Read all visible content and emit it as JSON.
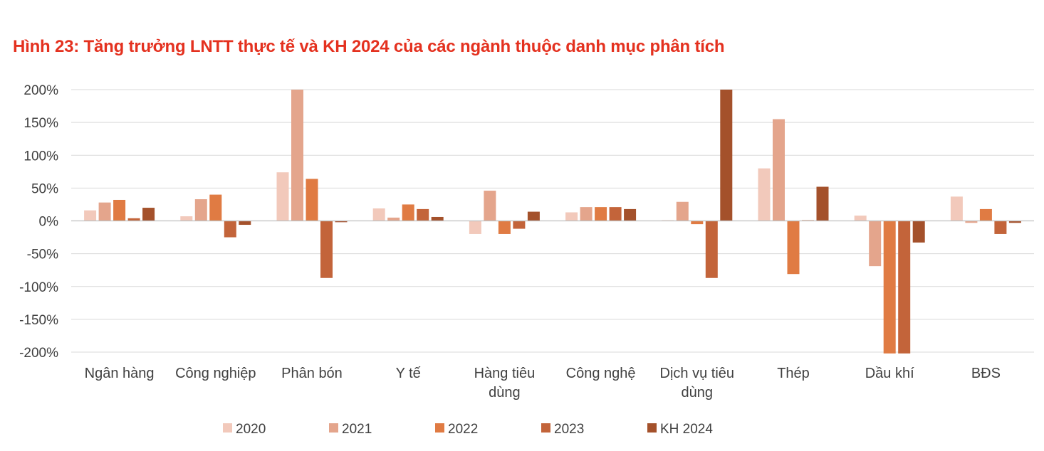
{
  "header": {
    "title": "Hình 23: Tăng trưởng LNTT thực tế và KH 2024 của các ngành thuộc danh mục phân tích"
  },
  "chart_data": {
    "type": "bar",
    "title": "Hình 23: Tăng trưởng LNTT thực tế và KH 2024 của các ngành thuộc danh mục phân tích",
    "xlabel": "",
    "ylabel": "",
    "ylim": [
      -200,
      200
    ],
    "yticks": [
      "200%",
      "150%",
      "100%",
      "50%",
      "0%",
      "-50%",
      "-100%",
      "-150%",
      "-200%"
    ],
    "ytick_values": [
      200,
      150,
      100,
      50,
      0,
      -50,
      -100,
      -150,
      -200
    ],
    "grid": true,
    "legend_position": "bottom",
    "categories": [
      [
        "Ngân hàng"
      ],
      [
        "Công nghiệp"
      ],
      [
        "Phân bón"
      ],
      [
        "Y tế"
      ],
      [
        "Hàng tiêu",
        "dùng"
      ],
      [
        "Công nghệ"
      ],
      [
        "Dịch vụ tiêu",
        "dùng"
      ],
      [
        "Thép"
      ],
      [
        "Dầu khí"
      ],
      [
        "BĐS"
      ]
    ],
    "series": [
      {
        "name": "2020",
        "color": "#f2c9bb",
        "values": [
          16,
          7,
          74,
          19,
          -20,
          13,
          1,
          80,
          8,
          37
        ]
      },
      {
        "name": "2021",
        "color": "#e4a58c",
        "values": [
          28,
          33,
          200,
          5,
          46,
          21,
          29,
          155,
          -69,
          -3
        ]
      },
      {
        "name": "2022",
        "color": "#e07b43",
        "values": [
          32,
          40,
          64,
          25,
          -20,
          21,
          -5,
          -81,
          -202,
          18
        ]
      },
      {
        "name": "2023",
        "color": "#c3643a",
        "values": [
          4,
          -25,
          -87,
          18,
          -12,
          21,
          -87,
          1,
          -202,
          -20
        ]
      },
      {
        "name": "KH 2024",
        "color": "#a4512b",
        "values": [
          20,
          -6,
          -2,
          6,
          14,
          18,
          200,
          52,
          -33,
          -3
        ]
      }
    ]
  }
}
